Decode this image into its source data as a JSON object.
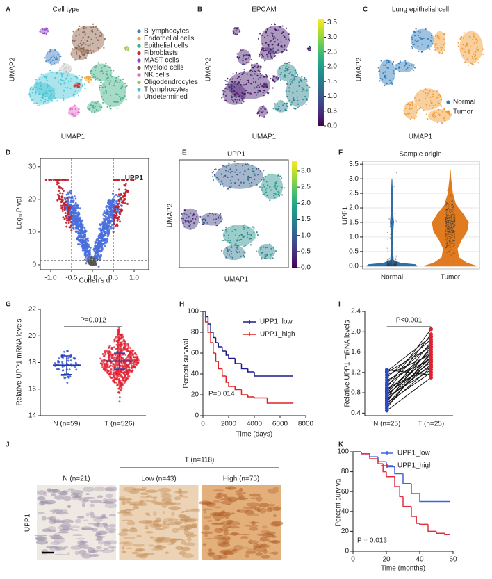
{
  "chart_data": [
    {
      "panel": "A",
      "type": "umap",
      "title": "Cell type",
      "xlabel": "UMAP1",
      "ylabel": "UMAP2",
      "series": [
        {
          "name": "B lymphocytes",
          "color": "#3b7ec0"
        },
        {
          "name": "Endothelial cells",
          "color": "#f0a030"
        },
        {
          "name": "Epithelial cells",
          "color": "#3fae84"
        },
        {
          "name": "Fibroblasts",
          "color": "#cf2f2f"
        },
        {
          "name": "MAST cells",
          "color": "#9044c4"
        },
        {
          "name": "Myeloid cells",
          "color": "#8b5e44"
        },
        {
          "name": "NK cells",
          "color": "#e468c6"
        },
        {
          "name": "Oligodendrocytes",
          "color": "#a2c455"
        },
        {
          "name": "T lymphocytes",
          "color": "#45c3d4"
        },
        {
          "name": "Undetermined",
          "color": "#c4c4c4"
        }
      ]
    },
    {
      "panel": "B",
      "type": "umap",
      "title": "EPCAM",
      "xlabel": "UMAP1",
      "ylabel": "UMAP2",
      "colorbar": {
        "lim": [
          0,
          3.6
        ],
        "ticks": [
          {
            "value": 0,
            "label": "0.0"
          },
          0.5,
          {
            "value": 1,
            "label": "1.0"
          },
          1.5,
          {
            "value": 2,
            "label": "2.0"
          },
          2.5,
          {
            "value": 3,
            "label": "3.0"
          },
          3.5
        ]
      }
    },
    {
      "panel": "C",
      "type": "umap",
      "title": "Lung epithelial cell",
      "xlabel": "UMAP1",
      "ylabel": "UMAP2",
      "series": [
        {
          "name": "Normal",
          "color": "#2a78b8"
        },
        {
          "name": "Tumor",
          "color": "#f0962a"
        }
      ]
    },
    {
      "panel": "D",
      "type": "volcano",
      "xlabel": "Cohen's d",
      "ylabel": "-Log₁₀P val",
      "xlim": [
        -1.25,
        1.35
      ],
      "ylim": [
        -1.5,
        32.5
      ],
      "xticks": [
        {
          "value": -1,
          "label": "-1.0"
        },
        -0.5,
        {
          "value": 0,
          "label": "0.0"
        },
        0.5,
        {
          "value": 1,
          "label": "1.0"
        }
      ],
      "yticks": [
        0,
        10,
        20,
        30
      ],
      "thresholds": {
        "x": [
          -0.5,
          0.5
        ],
        "y": 1.3
      },
      "annotation": "UPP1"
    },
    {
      "panel": "E",
      "type": "umap",
      "title": "UPP1",
      "xlabel": "UMAP1",
      "ylabel": "UMAP2",
      "colorbar": {
        "lim": [
          0,
          3.3
        ],
        "ticks": [
          {
            "value": 0,
            "label": "0.0"
          },
          0.5,
          {
            "value": 1,
            "label": "1.0"
          },
          1.5,
          {
            "value": 2,
            "label": "2.0"
          },
          2.5,
          {
            "value": 3,
            "label": "3.0"
          }
        ]
      }
    },
    {
      "panel": "F",
      "type": "violin",
      "title": "Sample origin",
      "ylabel": "UPP1",
      "categories": [
        "Normal",
        "Tumor"
      ],
      "colors": [
        "#2e6fa8",
        "#e07b20"
      ],
      "ylim": [
        -0.1,
        3.6
      ],
      "grid": true,
      "yticks": [
        {
          "value": 0,
          "label": "0.0"
        },
        0.5,
        {
          "value": 1,
          "label": "1.0"
        },
        1.5,
        {
          "value": 2,
          "label": "2.0"
        },
        2.5,
        {
          "value": 3,
          "label": "3.0"
        },
        3.5
      ]
    },
    {
      "panel": "G",
      "type": "dot",
      "ylabel": "Relative UPP1 mRNA levels",
      "categories": [
        "N (n=59)",
        "T (n=526)"
      ],
      "values": [
        17.8,
        18.1
      ],
      "errors": [
        0.7,
        0.6
      ],
      "color": "#1f3fb0",
      "colors": [
        "#2848c8",
        "#e02030"
      ],
      "ylim": [
        14,
        22
      ],
      "yticks": [
        14,
        16,
        18,
        20,
        22
      ],
      "annotation": "P=0.012"
    },
    {
      "panel": "H",
      "type": "survival",
      "xlabel": "Time (days)",
      "ylabel": "Percent survival",
      "xlim": [
        0,
        8000
      ],
      "xticks": [
        0,
        2000,
        4000,
        6000,
        8000
      ],
      "ylim": [
        0,
        100
      ],
      "yticks": [
        0,
        20,
        40,
        60,
        80,
        100
      ],
      "series": [
        {
          "name": "UPP1_low",
          "color": "#1a1a8c",
          "x": [
            0,
            200,
            400,
            600,
            800,
            1000,
            1200,
            1500,
            1800,
            2000,
            2500,
            3000,
            3500,
            4000,
            5000,
            7000
          ],
          "values": [
            100,
            95,
            88,
            80,
            75,
            70,
            66,
            62,
            58,
            55,
            50,
            45,
            42,
            38,
            38,
            38
          ]
        },
        {
          "name": "UPP1_high",
          "color": "#e02020",
          "x": [
            0,
            200,
            400,
            600,
            800,
            1000,
            1200,
            1500,
            1800,
            2000,
            2500,
            3000,
            3500,
            4000,
            5000,
            7000
          ],
          "values": [
            100,
            90,
            80,
            70,
            60,
            52,
            45,
            38,
            32,
            28,
            25,
            20,
            18,
            17,
            12,
            13
          ]
        }
      ],
      "annotation": "P=0.014"
    },
    {
      "panel": "I",
      "type": "paired",
      "ylabel": "Relative UPP1 mRNA levels",
      "categories": [
        "N (n=25)",
        "T (n=25)"
      ],
      "colors": [
        "#2848c8",
        "#e02030"
      ],
      "ylim": [
        0.35,
        2.4
      ],
      "yticks": [
        0.4,
        0.8,
        1.2,
        1.6,
        {
          "value": 2,
          "label": "2.0"
        },
        2.4
      ],
      "values": [
        [
          0.45,
          0.5,
          0.55,
          0.58,
          0.6,
          0.62,
          0.65,
          0.68,
          0.7,
          0.72,
          0.75,
          0.78,
          0.8,
          0.82,
          0.85,
          0.88,
          0.9,
          0.95,
          1.0,
          1.05,
          1.1,
          1.15,
          1.2,
          1.22,
          1.25
        ],
        [
          1.1,
          1.6,
          1.3,
          1.45,
          1.2,
          1.7,
          1.5,
          1.35,
          1.8,
          1.25,
          1.55,
          1.4,
          1.65,
          1.95,
          1.5,
          1.3,
          2.05,
          1.6,
          1.75,
          1.45,
          1.85,
          1.55,
          1.7,
          1.9,
          1.15
        ]
      ],
      "annotation": "P<0.001"
    },
    {
      "panel": "J",
      "type": "image",
      "ylabel": "UPP1",
      "group": "T (n=118)",
      "categories": [
        "N (n=21)",
        "Low (n=43)",
        "High (n=75)"
      ]
    },
    {
      "panel": "K",
      "type": "survival",
      "xlabel": "Time (months)",
      "ylabel": "Percent survival",
      "xlim": [
        0,
        60
      ],
      "xticks": [
        0,
        20,
        40,
        60
      ],
      "ylim": [
        0,
        100
      ],
      "yticks": [
        0,
        20,
        40,
        60,
        80,
        100
      ],
      "series": [
        {
          "name": "UPP1_low",
          "color": "#4060e0",
          "x": [
            0,
            5,
            10,
            15,
            20,
            25,
            30,
            35,
            40,
            45,
            50,
            55,
            58
          ],
          "values": [
            100,
            98,
            95,
            90,
            85,
            78,
            68,
            58,
            50,
            50,
            50,
            50,
            50
          ]
        },
        {
          "name": "UPP1_high",
          "color": "#e03040",
          "x": [
            0,
            5,
            10,
            15,
            18,
            20,
            25,
            28,
            30,
            35,
            38,
            40,
            45,
            50,
            55,
            58
          ],
          "values": [
            100,
            98,
            93,
            88,
            80,
            75,
            65,
            55,
            45,
            35,
            28,
            27,
            20,
            18,
            17,
            17
          ]
        }
      ],
      "annotation": "P = 0.013"
    }
  ]
}
